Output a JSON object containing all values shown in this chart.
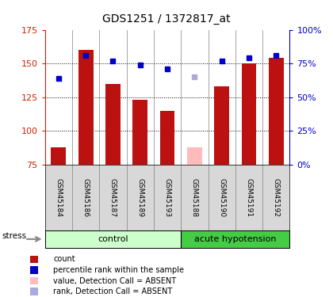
{
  "title": "GDS1251 / 1372817_at",
  "samples": [
    "GSM45184",
    "GSM45186",
    "GSM45187",
    "GSM45189",
    "GSM45193",
    "GSM45188",
    "GSM45190",
    "GSM45191",
    "GSM45192"
  ],
  "bar_values": [
    88,
    160,
    135,
    123,
    115,
    88,
    133,
    150,
    154
  ],
  "bar_colors": [
    "#bb1111",
    "#bb1111",
    "#bb1111",
    "#bb1111",
    "#bb1111",
    "#ffbbbb",
    "#bb1111",
    "#bb1111",
    "#bb1111"
  ],
  "rank_values": [
    139,
    156,
    152,
    149,
    146,
    140,
    152,
    154,
    156
  ],
  "rank_colors": [
    "#0000cc",
    "#0000cc",
    "#0000cc",
    "#0000cc",
    "#0000cc",
    "#aaaadd",
    "#0000cc",
    "#0000cc",
    "#0000cc"
  ],
  "ylim_left": [
    75,
    175
  ],
  "yticks_left": [
    75,
    100,
    125,
    150,
    175
  ],
  "ytick_labels_right": [
    "0%",
    "25%",
    "50%",
    "75%",
    "100%"
  ],
  "gridlines": [
    100,
    125,
    150
  ],
  "groups": [
    {
      "label": "control",
      "start": 0,
      "end": 5,
      "color": "#ccffcc"
    },
    {
      "label": "acute hypotension",
      "start": 5,
      "end": 9,
      "color": "#44cc44"
    }
  ],
  "stress_label": "stress",
  "legend": [
    {
      "label": "count",
      "color": "#bb1111"
    },
    {
      "label": "percentile rank within the sample",
      "color": "#0000cc"
    },
    {
      "label": "value, Detection Call = ABSENT",
      "color": "#ffbbbb"
    },
    {
      "label": "rank, Detection Call = ABSENT",
      "color": "#aaaadd"
    }
  ],
  "bar_width": 0.55,
  "background_color": "#ffffff",
  "tick_color_left": "#cc2200",
  "tick_color_right": "#0000cc",
  "sample_box_color": "#d8d8d8",
  "n_control": 5
}
